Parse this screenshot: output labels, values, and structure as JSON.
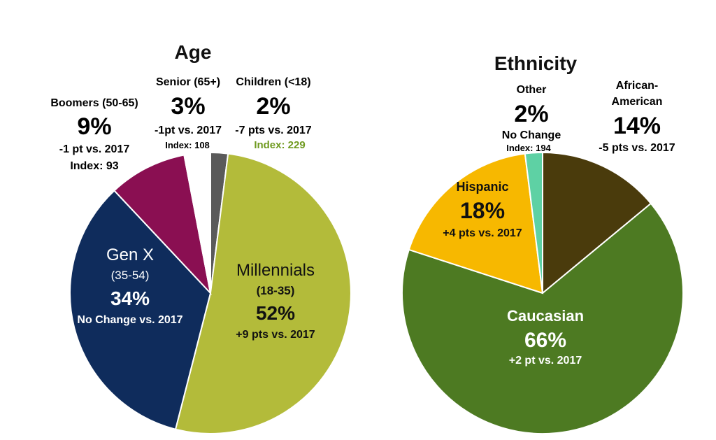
{
  "chart_data": [
    {
      "type": "pie",
      "title": "Age",
      "unit": "%",
      "slices": [
        {
          "name": "Children (<18)",
          "value": 2,
          "color": "#5a5a5a",
          "label": "Children (<18)",
          "pct": "2%",
          "change": "-7 pts vs. 2017",
          "index": "Index: 229",
          "index_color": "#6f9a1f"
        },
        {
          "name": "Millennials (18-35)",
          "value": 52,
          "color": "#b3bb3a",
          "label": "Millennials",
          "sub": "(18-35)",
          "pct": "52%",
          "change": "+9 pts vs. 2017"
        },
        {
          "name": "Gen X (35-54)",
          "value": 34,
          "color": "#0f2c5c",
          "label": "Gen X",
          "sub": "(35-54)",
          "pct": "34%",
          "change": "No Change vs. 2017"
        },
        {
          "name": "Boomers (50-65)",
          "value": 9,
          "color": "#8a0f52",
          "label": "Boomers (50-65)",
          "pct": "9%",
          "change": "-1 pt vs. 2017",
          "index": "Index: 93"
        },
        {
          "name": "Senior (65+)",
          "value": 3,
          "color": "#ffffff",
          "label": "Senior (65+)",
          "pct": "3%",
          "change": "-1pt vs. 2017",
          "index": "Index: 108"
        }
      ]
    },
    {
      "type": "pie",
      "title": "Ethnicity",
      "unit": "%",
      "slices": [
        {
          "name": "African-American",
          "value": 14,
          "color": "#4a3b0c",
          "label": "African-",
          "label2": "American",
          "pct": "14%",
          "change": "-5 pts vs. 2017"
        },
        {
          "name": "Caucasian",
          "value": 66,
          "color": "#4d7a22",
          "label": "Caucasian",
          "pct": "66%",
          "change": "+2 pt vs. 2017"
        },
        {
          "name": "Hispanic",
          "value": 18,
          "color": "#f7b800",
          "label": "Hispanic",
          "pct": "18%",
          "change": "+4 pts vs. 2017"
        },
        {
          "name": "Other",
          "value": 2,
          "color": "#5ed1a4",
          "label": "Other",
          "pct": "2%",
          "change": "No Change",
          "index": "Index: 194"
        }
      ]
    }
  ]
}
